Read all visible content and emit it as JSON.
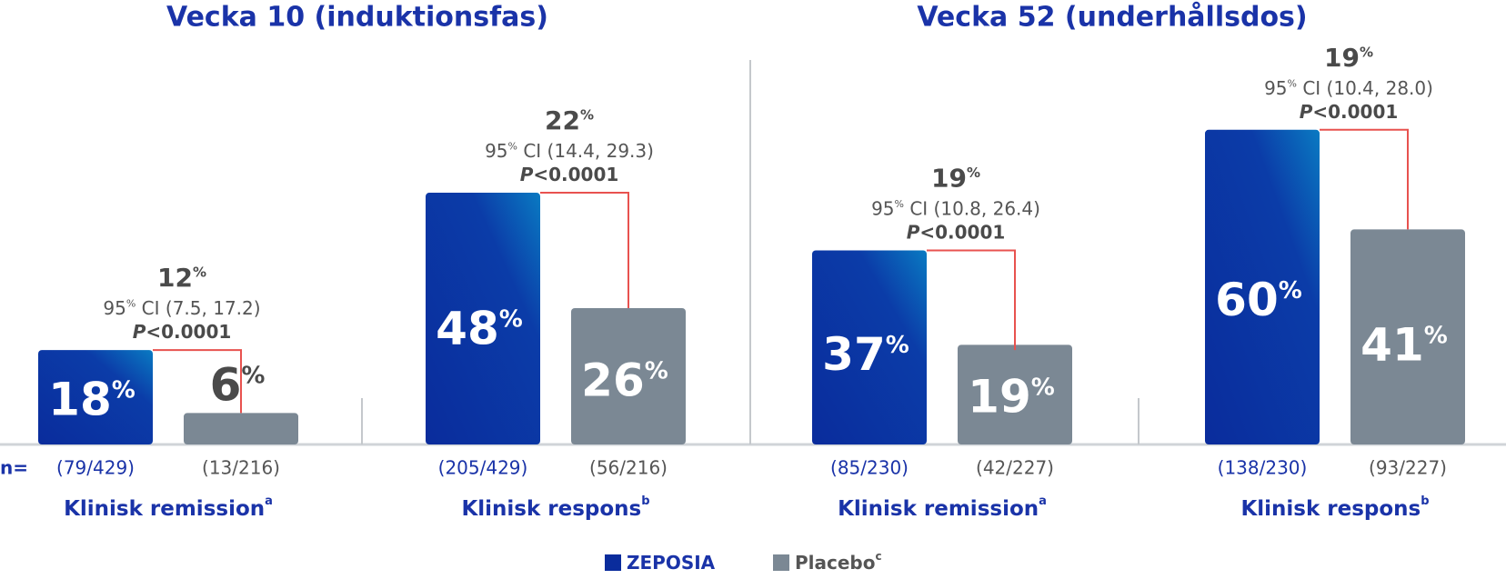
{
  "chart_data": [
    {
      "type": "bar",
      "title": "Vecka 10 (induktionsfas)",
      "n_label": "n=",
      "categories": [
        "Klinisk remission",
        "Klinisk respons"
      ],
      "category_notes": [
        "a",
        "b"
      ],
      "series": [
        {
          "name": "ZEPOSIA",
          "color": "#0a2c9c",
          "values": [
            18,
            48
          ],
          "value_labels": [
            "18%",
            "48%"
          ],
          "counts": [
            "(79/429)",
            "(205/429)"
          ]
        },
        {
          "name": "Placebo",
          "name_note": "c",
          "color": "#7b8894",
          "values": [
            6,
            26
          ],
          "value_labels": [
            "6%",
            "26%"
          ],
          "counts": [
            "(13/216)",
            "(56/216)"
          ]
        }
      ],
      "differences": [
        {
          "value": 12,
          "label": "12%",
          "ci": "95% CI (7.5, 17.2)",
          "p": "P<0.0001"
        },
        {
          "value": 22,
          "label": "22%",
          "ci": "95% CI (14.4, 29.3)",
          "p": "P<0.0001"
        }
      ]
    },
    {
      "type": "bar",
      "title": "Vecka 52 (underhållsdos)",
      "categories": [
        "Klinisk remission",
        "Klinisk respons"
      ],
      "category_notes": [
        "a",
        "b"
      ],
      "series": [
        {
          "name": "ZEPOSIA",
          "color": "#0a2c9c",
          "values": [
            37,
            60
          ],
          "value_labels": [
            "37%",
            "60%"
          ],
          "counts": [
            "(85/230)",
            "(138/230)"
          ]
        },
        {
          "name": "Placebo",
          "color": "#7b8894",
          "values": [
            19,
            41
          ],
          "value_labels": [
            "19%",
            "41%"
          ],
          "counts": [
            "(42/227)",
            "(93/227)"
          ]
        }
      ],
      "differences": [
        {
          "value": 19,
          "label": "19%",
          "ci": "95% CI (10.8, 26.4)",
          "p": "P<0.0001"
        },
        {
          "value": 19,
          "label": "19%",
          "ci": "95% CI (10.4, 28.0)",
          "p": "P<0.0001"
        }
      ]
    }
  ]
}
